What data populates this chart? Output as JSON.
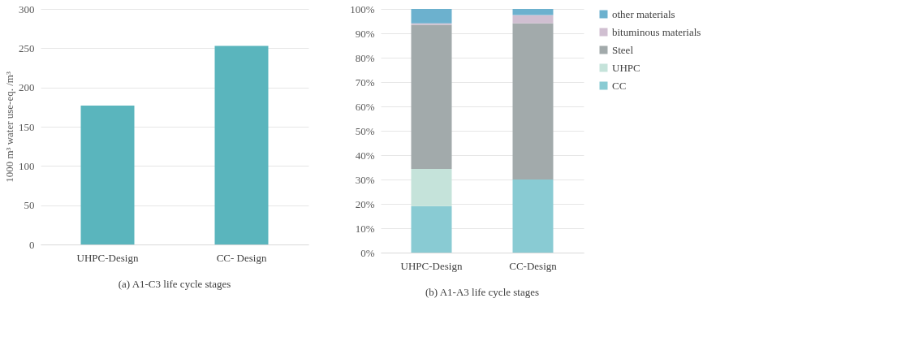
{
  "chart_data": [
    {
      "type": "bar",
      "title": "(a) A1-C3 life cycle stages",
      "ylabel": "1000 m³ water use-eq. /m³",
      "categories": [
        "UHPC-Design",
        "CC- Design"
      ],
      "values": [
        177,
        253
      ],
      "color": "#5ab5bd",
      "ylim": [
        0,
        300
      ],
      "yticks": [
        0,
        50,
        100,
        150,
        200,
        250,
        300
      ],
      "grid": "y"
    },
    {
      "type": "bar",
      "title": "(b) A1-A3 life cycle stages",
      "stacked": true,
      "categories": [
        "UHPC-Design",
        "CC-Design"
      ],
      "series": [
        {
          "name": "CC",
          "color": "#89cbd3",
          "values": [
            19.1,
            30.0
          ]
        },
        {
          "name": "UHPC",
          "color": "#c5e3da",
          "values": [
            15.2,
            0
          ]
        },
        {
          "name": "Steel",
          "color": "#a2aaab",
          "values": [
            59.2,
            64.1
          ]
        },
        {
          "name": "bituminous materials",
          "color": "#d0bfd1",
          "values": [
            0.6,
            3.4
          ]
        },
        {
          "name": "other materials",
          "color": "#6cb1ce",
          "values": [
            5.9,
            2.5
          ]
        }
      ],
      "ylim": [
        0,
        100
      ],
      "yticks": [
        {
          "value": 0,
          "label": "0%"
        },
        {
          "value": 10,
          "label": "10%"
        },
        {
          "value": 20,
          "label": "20%"
        },
        {
          "value": 30,
          "label": "30%"
        },
        {
          "value": 40,
          "label": "40%"
        },
        {
          "value": 50,
          "label": "50%"
        },
        {
          "value": 60,
          "label": "60%"
        },
        {
          "value": 70,
          "label": "70%"
        },
        {
          "value": 80,
          "label": "80%"
        },
        {
          "value": 90,
          "label": "90%"
        },
        {
          "value": 100,
          "label": "100%"
        }
      ],
      "grid": "y",
      "legend": "right"
    }
  ]
}
